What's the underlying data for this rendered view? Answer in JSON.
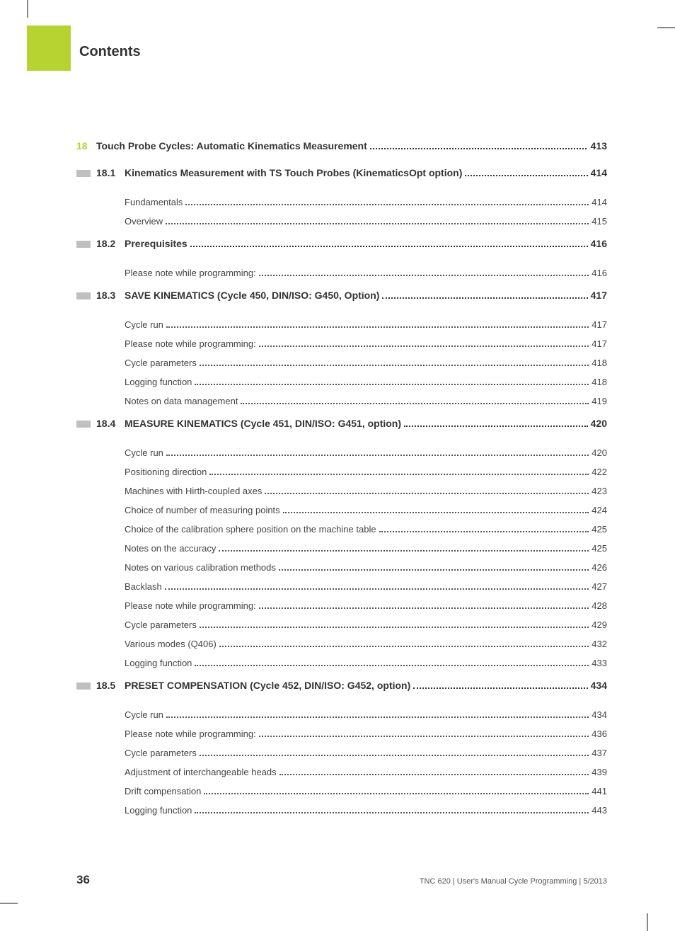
{
  "colors": {
    "accent": "#b7d332",
    "marker": "#bfbfbf",
    "text": "#333333",
    "subtext": "#444444",
    "background": "#ffffff"
  },
  "header": {
    "title": "Contents"
  },
  "chapter": {
    "num": "18",
    "title": "Touch Probe Cycles: Automatic Kinematics Measurement",
    "page": "413"
  },
  "sections": [
    {
      "num": "18.1",
      "title": "Kinematics Measurement with TS Touch Probes (KinematicsOpt option)",
      "page": "414",
      "items": [
        {
          "title": "Fundamentals",
          "page": "414"
        },
        {
          "title": "Overview",
          "page": "415"
        }
      ]
    },
    {
      "num": "18.2",
      "title": "Prerequisites",
      "page": "416",
      "items": [
        {
          "title": "Please note while programming:",
          "page": "416"
        }
      ]
    },
    {
      "num": "18.3",
      "title": "SAVE KINEMATICS (Cycle 450, DIN/ISO: G450, Option)",
      "page": "417",
      "items": [
        {
          "title": "Cycle run",
          "page": "417"
        },
        {
          "title": "Please note while programming:",
          "page": "417"
        },
        {
          "title": "Cycle parameters",
          "page": "418"
        },
        {
          "title": "Logging function",
          "page": "418"
        },
        {
          "title": "Notes on data management",
          "page": "419"
        }
      ]
    },
    {
      "num": "18.4",
      "title": "MEASURE KINEMATICS (Cycle 451, DIN/ISO: G451, option)",
      "page": "420",
      "items": [
        {
          "title": "Cycle run",
          "page": "420"
        },
        {
          "title": "Positioning direction",
          "page": "422"
        },
        {
          "title": "Machines with Hirth-coupled axes",
          "page": "423"
        },
        {
          "title": "Choice of number of measuring points",
          "page": "424"
        },
        {
          "title": "Choice of the calibration sphere position on the machine table",
          "page": "425"
        },
        {
          "title": "Notes on the accuracy",
          "page": "425"
        },
        {
          "title": "Notes on various calibration methods",
          "page": "426"
        },
        {
          "title": "Backlash",
          "page": "427"
        },
        {
          "title": "Please note while programming:",
          "page": "428"
        },
        {
          "title": "Cycle parameters",
          "page": "429"
        },
        {
          "title": "Various modes (Q406)",
          "page": "432"
        },
        {
          "title": "Logging function",
          "page": "433"
        }
      ]
    },
    {
      "num": "18.5",
      "title": "PRESET COMPENSATION (Cycle 452, DIN/ISO: G452, option)",
      "page": "434",
      "items": [
        {
          "title": "Cycle run",
          "page": "434"
        },
        {
          "title": "Please note while programming:",
          "page": "436"
        },
        {
          "title": "Cycle parameters",
          "page": "437"
        },
        {
          "title": "Adjustment of interchangeable heads",
          "page": "439"
        },
        {
          "title": "Drift compensation",
          "page": "441"
        },
        {
          "title": "Logging function",
          "page": "443"
        }
      ]
    }
  ],
  "footer": {
    "page": "36",
    "text": "TNC 620 | User's Manual Cycle Programming | 5/2013"
  }
}
